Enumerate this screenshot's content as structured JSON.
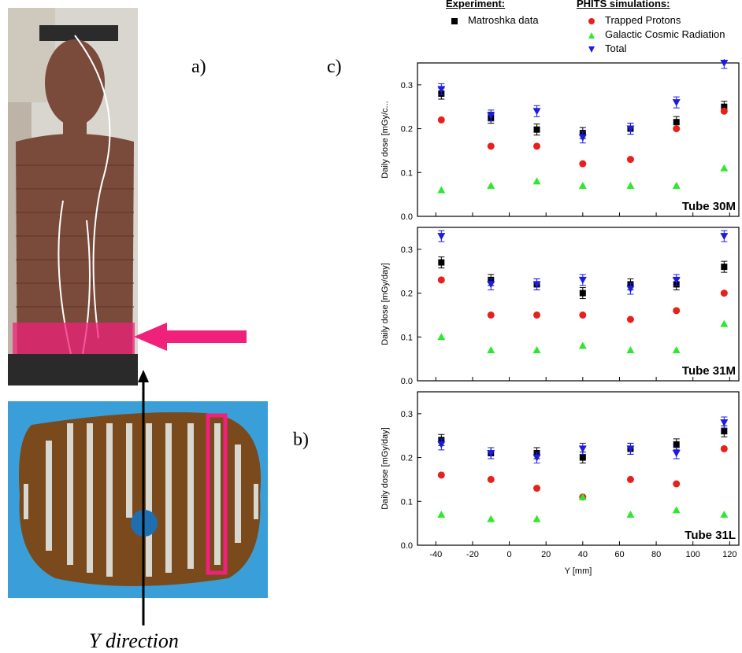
{
  "labels": {
    "a": "a)",
    "b": "b)",
    "c": "c)",
    "y_direction": "Y direction"
  },
  "legend": {
    "experiment_header": "Experiment:",
    "simulation_header": "PHITS simulations:",
    "items": [
      {
        "marker": "square",
        "color": "#000000",
        "label": "Matroshka data"
      },
      {
        "marker": "circle",
        "color": "#e8201c",
        "label": "Trapped Protons"
      },
      {
        "marker": "triangle-up",
        "color": "#2ee82e",
        "label": "Galactic Cosmic Radiation"
      },
      {
        "marker": "triangle-down",
        "color": "#1b1be8",
        "label": "Total"
      }
    ]
  },
  "colors": {
    "matroshka": "#000000",
    "trapped": "#e8201c",
    "gcr": "#2ee82e",
    "total": "#1b1be8",
    "highlight": "#f0217a",
    "phantom": "#7a4a3a",
    "slice_bg": "#3a9fd9"
  },
  "chart_data": [
    {
      "type": "scatter",
      "title": "Tube 30M",
      "ylabel": "Daily dose [mGy/c...",
      "xlabel": "",
      "xlim": [
        -50,
        125
      ],
      "ylim": [
        0,
        0.35
      ],
      "xticks": [
        -40,
        -20,
        0,
        20,
        40,
        60,
        80,
        100,
        120
      ],
      "yticks": [
        0.0,
        0.1,
        0.2,
        0.3
      ],
      "x": [
        -37,
        -10,
        15,
        40,
        66,
        91,
        117
      ],
      "series": [
        {
          "name": "Matroshka data",
          "values": [
            0.28,
            0.225,
            0.198,
            0.19,
            0.2,
            0.215,
            0.25
          ]
        },
        {
          "name": "Trapped Protons",
          "values": [
            0.22,
            0.16,
            0.16,
            0.12,
            0.13,
            0.2,
            0.24
          ]
        },
        {
          "name": "Galactic Cosmic Radiation",
          "values": [
            0.06,
            0.07,
            0.08,
            0.07,
            0.07,
            0.07,
            0.11
          ]
        },
        {
          "name": "Total",
          "values": [
            0.29,
            0.23,
            0.24,
            0.18,
            0.2,
            0.26,
            0.35
          ]
        }
      ]
    },
    {
      "type": "scatter",
      "title": "Tube 31M",
      "ylabel": "Daily dose [mGy/day]",
      "xlabel": "",
      "xlim": [
        -50,
        125
      ],
      "ylim": [
        0,
        0.35
      ],
      "xticks": [
        -40,
        -20,
        0,
        20,
        40,
        60,
        80,
        100,
        120
      ],
      "yticks": [
        0.0,
        0.1,
        0.2,
        0.3
      ],
      "x": [
        -37,
        -10,
        15,
        40,
        66,
        91,
        117
      ],
      "series": [
        {
          "name": "Matroshka data",
          "values": [
            0.27,
            0.23,
            0.22,
            0.2,
            0.22,
            0.22,
            0.26
          ]
        },
        {
          "name": "Trapped Protons",
          "values": [
            0.23,
            0.15,
            0.15,
            0.15,
            0.14,
            0.16,
            0.2
          ]
        },
        {
          "name": "Galactic Cosmic Radiation",
          "values": [
            0.1,
            0.07,
            0.07,
            0.08,
            0.07,
            0.07,
            0.13
          ]
        },
        {
          "name": "Total",
          "values": [
            0.33,
            0.22,
            0.22,
            0.23,
            0.21,
            0.23,
            0.33
          ]
        }
      ]
    },
    {
      "type": "scatter",
      "title": "Tube 31L",
      "ylabel": "Daily dose [mGy/day]",
      "xlabel": "Y [mm]",
      "xlim": [
        -50,
        125
      ],
      "ylim": [
        0,
        0.35
      ],
      "xticks": [
        -40,
        -20,
        0,
        20,
        40,
        60,
        80,
        100,
        120
      ],
      "yticks": [
        0.0,
        0.1,
        0.2,
        0.3
      ],
      "x": [
        -37,
        -10,
        15,
        40,
        66,
        91,
        117
      ],
      "series": [
        {
          "name": "Matroshka data",
          "values": [
            0.24,
            0.21,
            0.21,
            0.2,
            0.22,
            0.23,
            0.26
          ]
        },
        {
          "name": "Trapped Protons",
          "values": [
            0.16,
            0.15,
            0.13,
            0.11,
            0.15,
            0.14,
            0.22
          ]
        },
        {
          "name": "Galactic Cosmic Radiation",
          "values": [
            0.07,
            0.06,
            0.06,
            0.11,
            0.07,
            0.08,
            0.07
          ]
        },
        {
          "name": "Total",
          "values": [
            0.23,
            0.21,
            0.2,
            0.22,
            0.22,
            0.21,
            0.28
          ]
        }
      ]
    }
  ]
}
